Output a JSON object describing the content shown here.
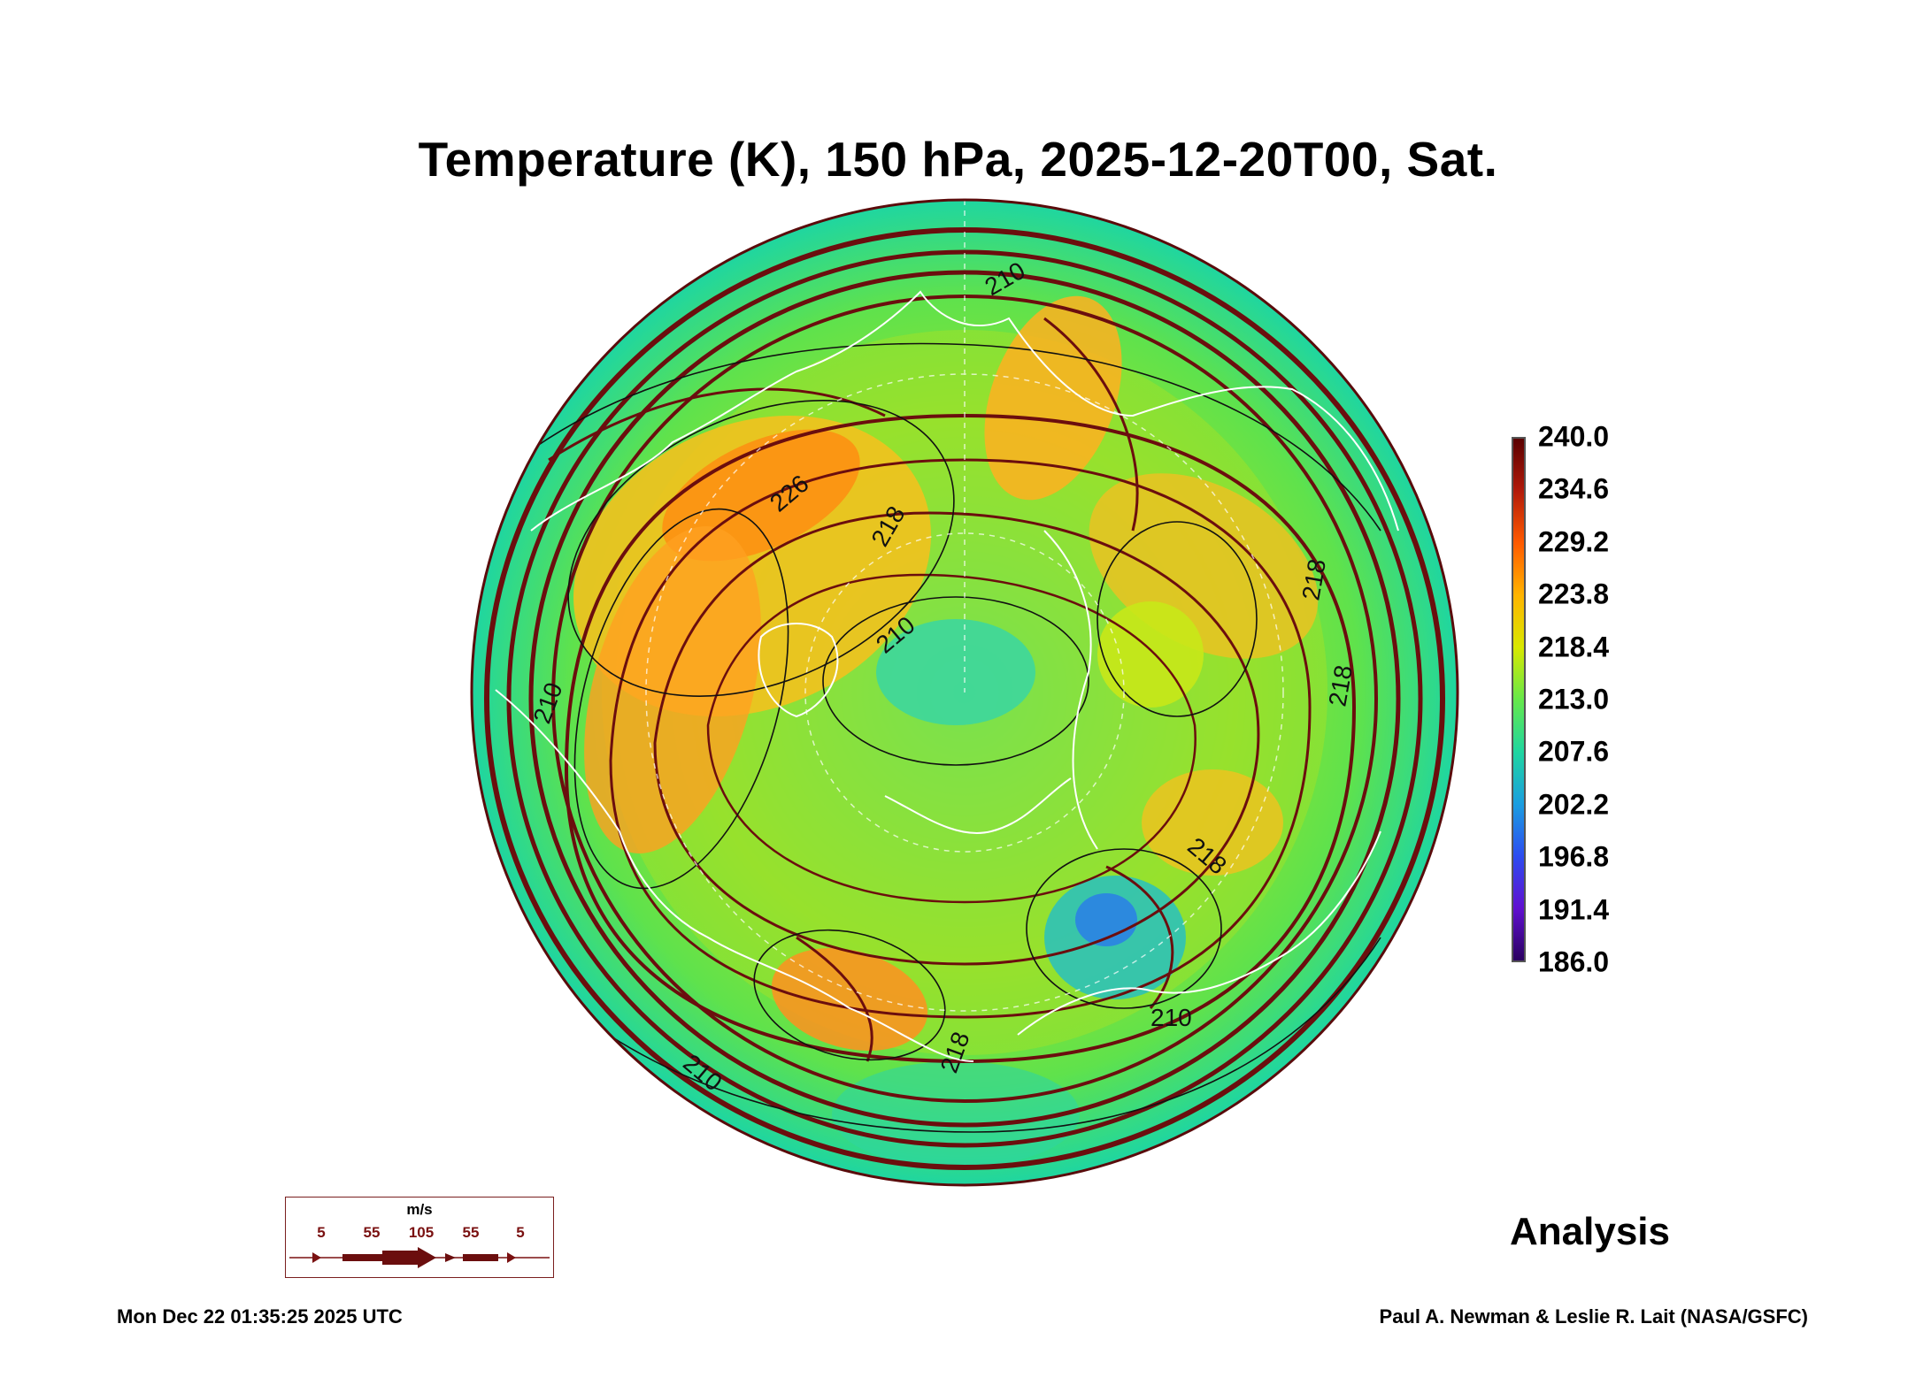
{
  "title": "Temperature (K), 150 hPa, 2025-12-20T00, Sat.",
  "colorbar": {
    "ticks": [
      "240.0",
      "234.6",
      "229.2",
      "223.8",
      "218.4",
      "213.0",
      "207.6",
      "202.2",
      "196.8",
      "191.4",
      "186.0"
    ],
    "colors": [
      "#5a0000",
      "#b21a0a",
      "#ff5a00",
      "#ffb400",
      "#d8e800",
      "#66e84a",
      "#1fd6a0",
      "#1a9ee0",
      "#2c4cf0",
      "#6010d0",
      "#2a0060"
    ]
  },
  "contour_labels": [
    "210",
    "218",
    "218",
    "226",
    "210",
    "218",
    "218",
    "210",
    "210",
    "218",
    "210"
  ],
  "wind_legend": {
    "units": "m/s",
    "labels": [
      "5",
      "55",
      "105",
      "55",
      "5"
    ]
  },
  "analysis_label": "Analysis",
  "timestamp": "Mon Dec 22 01:35:25 2025 UTC",
  "credit": "Paul A. Newman & Leslie R. Lait (NASA/GSFC)"
}
